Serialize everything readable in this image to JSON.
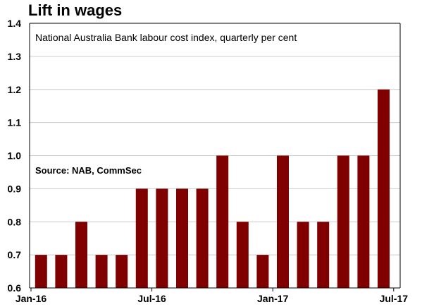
{
  "chart_data": {
    "type": "bar",
    "title": "Lift in wages",
    "subtitle": "National Australia Bank labour cost index, quarterly per cent",
    "source": "Source: NAB, CommSec",
    "xlabel": "",
    "ylabel": "",
    "ylim": [
      0.6,
      1.4
    ],
    "yticks": [
      0.6,
      0.7,
      0.8,
      0.9,
      1.0,
      1.1,
      1.2,
      1.3,
      1.4
    ],
    "ytick_labels": [
      "0.6",
      "0.7",
      "0.8",
      "0.9",
      "1.0",
      "1.1",
      "1.2",
      "1.3",
      "1.4"
    ],
    "xtick_labels": [
      {
        "label": "Jan-16",
        "position": 0
      },
      {
        "label": "Jul-16",
        "position": 6
      },
      {
        "label": "Jan-17",
        "position": 12
      },
      {
        "label": "Jul-17",
        "position": 18
      }
    ],
    "values": [
      0.7,
      0.7,
      0.8,
      0.7,
      0.7,
      0.9,
      0.9,
      0.9,
      0.9,
      1.0,
      0.8,
      0.7,
      1.0,
      0.8,
      0.8,
      1.0,
      1.0,
      1.2
    ],
    "grid": true,
    "colors": {
      "bar": "#800000",
      "grid": "#cccccc",
      "axis": "#000000"
    }
  }
}
